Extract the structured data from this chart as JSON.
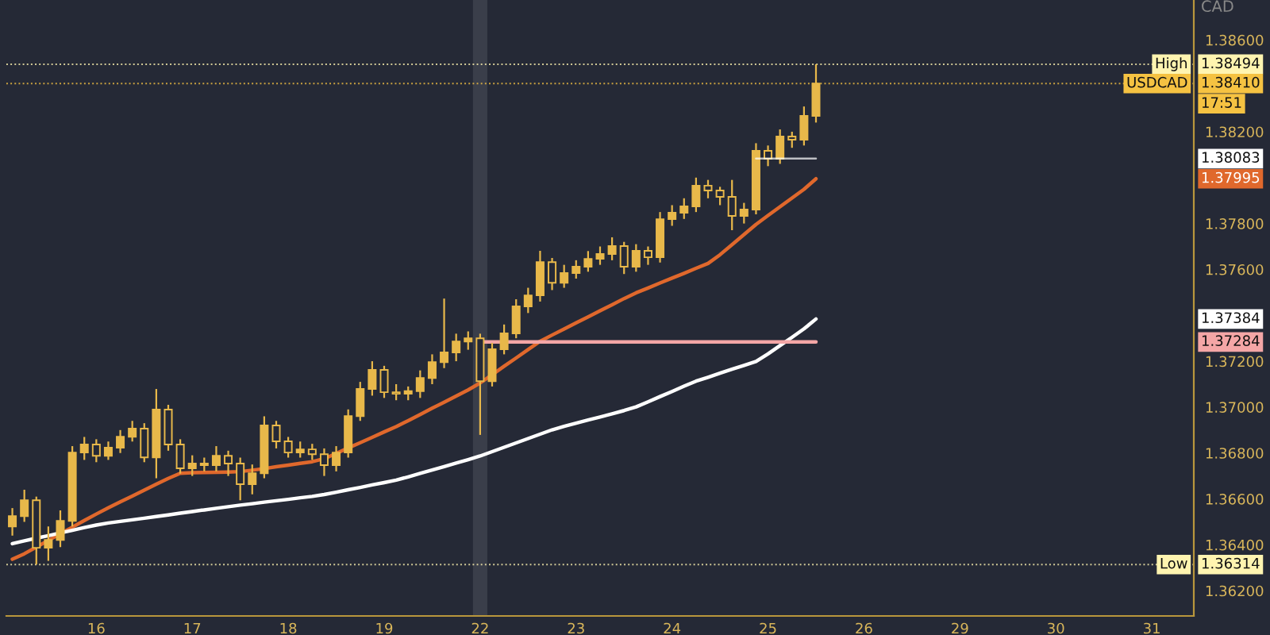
{
  "chart_data": {
    "type": "candlestick",
    "ylabel": "CAD",
    "categories": [
      null,
      null,
      null,
      null,
      null,
      null,
      null,
      "16",
      null,
      null,
      null,
      null,
      null,
      null,
      null,
      "17",
      null,
      null,
      null,
      null,
      null,
      null,
      null,
      "18",
      null,
      null,
      null,
      null,
      null,
      null,
      null,
      "19",
      null,
      null,
      null,
      null,
      null,
      null,
      null,
      "22",
      null,
      null,
      null,
      null,
      null,
      null,
      null,
      "23",
      null,
      null,
      null,
      null,
      null,
      null,
      null,
      "24",
      null,
      null,
      null,
      null,
      null,
      null,
      null,
      "25",
      null,
      null,
      null,
      null,
      null,
      null,
      null,
      "26",
      null,
      null,
      null,
      null,
      null,
      null,
      null,
      "29",
      null,
      null,
      null,
      null,
      null,
      null,
      null,
      "30",
      null,
      null,
      null,
      null,
      null,
      null,
      null,
      "31",
      null,
      null,
      null
    ],
    "ohlc": [
      [
        1.3648,
        1.3656,
        1.3644,
        1.36525
      ],
      [
        1.36525,
        1.3664,
        1.365,
        1.36594
      ],
      [
        1.36594,
        1.3661,
        1.36314,
        1.36387
      ],
      [
        1.36387,
        1.3648,
        1.3633,
        1.36421
      ],
      [
        1.36421,
        1.3655,
        1.3639,
        1.36504
      ],
      [
        1.36504,
        1.3683,
        1.3648,
        1.36802
      ],
      [
        1.36802,
        1.3687,
        1.3677,
        1.36837
      ],
      [
        1.36837,
        1.3686,
        1.3676,
        1.36788
      ],
      [
        1.36788,
        1.3685,
        1.3677,
        1.36823
      ],
      [
        1.36823,
        1.369,
        1.368,
        1.36871
      ],
      [
        1.36871,
        1.3694,
        1.3685,
        1.36906
      ],
      [
        1.36906,
        1.3693,
        1.3676,
        1.36781
      ],
      [
        1.36781,
        1.37079,
        1.3669,
        1.36989
      ],
      [
        1.36989,
        1.3701,
        1.3681,
        1.36837
      ],
      [
        1.36837,
        1.3686,
        1.3671,
        1.36733
      ],
      [
        1.36733,
        1.3679,
        1.367,
        1.36754
      ],
      [
        1.36754,
        1.3678,
        1.3672,
        1.36747
      ],
      [
        1.36747,
        1.3683,
        1.3672,
        1.36788
      ],
      [
        1.36788,
        1.3681,
        1.367,
        1.36754
      ],
      [
        1.36754,
        1.3678,
        1.36594,
        1.36664
      ],
      [
        1.36664,
        1.3675,
        1.3662,
        1.36712
      ],
      [
        1.36712,
        1.3696,
        1.3669,
        1.3692
      ],
      [
        1.3692,
        1.3694,
        1.3682,
        1.36851
      ],
      [
        1.36851,
        1.3687,
        1.3678,
        1.36802
      ],
      [
        1.36802,
        1.3685,
        1.3678,
        1.36816
      ],
      [
        1.36816,
        1.3684,
        1.3677,
        1.36795
      ],
      [
        1.36795,
        1.3682,
        1.367,
        1.36747
      ],
      [
        1.36747,
        1.3683,
        1.3672,
        1.36802
      ],
      [
        1.36802,
        1.3699,
        1.3678,
        1.36961
      ],
      [
        1.36961,
        1.3711,
        1.3694,
        1.37079
      ],
      [
        1.37079,
        1.372,
        1.3705,
        1.37162
      ],
      [
        1.37162,
        1.3718,
        1.3704,
        1.37065
      ],
      [
        1.37065,
        1.371,
        1.3703,
        1.37058
      ],
      [
        1.37058,
        1.3709,
        1.3703,
        1.3707
      ],
      [
        1.3707,
        1.3716,
        1.3704,
        1.37127
      ],
      [
        1.37127,
        1.3723,
        1.371,
        1.37196
      ],
      [
        1.37196,
        1.37473,
        1.3717,
        1.37238
      ],
      [
        1.37238,
        1.3732,
        1.372,
        1.37286
      ],
      [
        1.37286,
        1.3733,
        1.3725,
        1.373
      ],
      [
        1.373,
        1.3732,
        1.36879,
        1.37113
      ],
      [
        1.37113,
        1.3728,
        1.3709,
        1.37252
      ],
      [
        1.37252,
        1.3736,
        1.3723,
        1.37321
      ],
      [
        1.37321,
        1.3747,
        1.373,
        1.37439
      ],
      [
        1.37439,
        1.3752,
        1.3741,
        1.37487
      ],
      [
        1.37487,
        1.37681,
        1.3746,
        1.37632
      ],
      [
        1.37632,
        1.3765,
        1.3751,
        1.37542
      ],
      [
        1.37542,
        1.3762,
        1.3752,
        1.37584
      ],
      [
        1.37584,
        1.3764,
        1.3756,
        1.37612
      ],
      [
        1.37612,
        1.3768,
        1.3759,
        1.37646
      ],
      [
        1.37646,
        1.377,
        1.3762,
        1.37667
      ],
      [
        1.37667,
        1.3774,
        1.3764,
        1.37702
      ],
      [
        1.37702,
        1.3772,
        1.3758,
        1.37612
      ],
      [
        1.37612,
        1.3771,
        1.3759,
        1.37681
      ],
      [
        1.37681,
        1.377,
        1.3762,
        1.37653
      ],
      [
        1.37653,
        1.3785,
        1.3763,
        1.37819
      ],
      [
        1.37819,
        1.3788,
        1.3779,
        1.37847
      ],
      [
        1.37847,
        1.3791,
        1.3782,
        1.37875
      ],
      [
        1.37875,
        1.38,
        1.3785,
        1.37965
      ],
      [
        1.37965,
        1.3799,
        1.3791,
        1.37944
      ],
      [
        1.37944,
        1.3796,
        1.3788,
        1.37916
      ],
      [
        1.37916,
        1.3799,
        1.37771,
        1.37833
      ],
      [
        1.37833,
        1.3789,
        1.378,
        1.37861
      ],
      [
        1.37861,
        1.3815,
        1.3784,
        1.38117
      ],
      [
        1.38117,
        1.3814,
        1.3805,
        1.38082
      ],
      [
        1.38082,
        1.3821,
        1.3806,
        1.38179
      ],
      [
        1.38179,
        1.382,
        1.3813,
        1.38165
      ],
      [
        1.38165,
        1.3831,
        1.3814,
        1.38269
      ],
      [
        1.38269,
        1.38494,
        1.3824,
        1.3841
      ],
      null,
      null,
      null,
      null,
      null,
      null,
      null,
      null,
      null,
      null,
      null,
      null,
      null,
      null,
      null,
      null,
      null,
      null,
      null,
      null,
      null,
      null,
      null,
      null,
      null,
      null,
      null,
      null,
      null,
      null,
      null
    ],
    "color": "#e8b84a",
    "series": [
      {
        "type": "line",
        "color": "#e0682c",
        "values": [
          1.36337,
          1.36361,
          1.3639,
          1.36419,
          1.36448,
          1.36477,
          1.36506,
          1.36534,
          1.36561,
          1.36587,
          1.36612,
          1.36638,
          1.36664,
          1.36689,
          1.36712,
          1.36714,
          1.36715,
          1.36716,
          1.36717,
          1.36719,
          1.36725,
          1.36732,
          1.3674,
          1.36747,
          1.36755,
          1.36762,
          1.36775,
          1.36798,
          1.36822,
          1.36845,
          1.36868,
          1.36892,
          1.36915,
          1.36941,
          1.36968,
          1.36995,
          1.37021,
          1.37048,
          1.37075,
          1.37105,
          1.37141,
          1.37178,
          1.37214,
          1.37251,
          1.37287,
          1.37314,
          1.3734,
          1.37367,
          1.37393,
          1.3742,
          1.37446,
          1.37473,
          1.37498,
          1.37519,
          1.37541,
          1.37562,
          1.37583,
          1.37605,
          1.37626,
          1.37664,
          1.37708,
          1.37752,
          1.37796,
          1.37835,
          1.37873,
          1.37911,
          1.37949,
          1.37995,
          null,
          null,
          null,
          null,
          null,
          null,
          null,
          null,
          null,
          null,
          null,
          null,
          null,
          null,
          null,
          null,
          null,
          null,
          null,
          null,
          null,
          null,
          null,
          null,
          null,
          null,
          null,
          null,
          null,
          null,
          null
        ]
      },
      {
        "type": "line",
        "color": "#ffffff",
        "values": [
          1.36405,
          1.36417,
          1.36429,
          1.3644,
          1.36452,
          1.36463,
          1.36475,
          1.36486,
          1.36495,
          1.36502,
          1.36509,
          1.36516,
          1.36523,
          1.3653,
          1.36538,
          1.36545,
          1.36552,
          1.36559,
          1.36566,
          1.36573,
          1.36579,
          1.36586,
          1.36592,
          1.36598,
          1.36605,
          1.36611,
          1.36619,
          1.36629,
          1.3664,
          1.3665,
          1.36661,
          1.36671,
          1.36682,
          1.36696,
          1.36711,
          1.36726,
          1.36741,
          1.36756,
          1.36771,
          1.36787,
          1.36806,
          1.36825,
          1.36844,
          1.36863,
          1.36882,
          1.36901,
          1.36916,
          1.3693,
          1.36944,
          1.36957,
          1.36971,
          1.36985,
          1.37001,
          1.37023,
          1.37046,
          1.37068,
          1.37091,
          1.37113,
          1.3713,
          1.37148,
          1.37165,
          1.37182,
          1.37199,
          1.37232,
          1.37268,
          1.37304,
          1.37341,
          1.37384,
          null,
          null,
          null,
          null,
          null,
          null,
          null,
          null,
          null,
          null,
          null,
          null,
          null,
          null,
          null,
          null,
          null,
          null,
          null,
          null,
          null,
          null,
          null,
          null,
          null,
          null,
          null,
          null,
          null,
          null,
          null
        ]
      },
      {
        "type": "line",
        "color": "#f4a6a6",
        "values": [
          null,
          null,
          null,
          null,
          null,
          null,
          null,
          null,
          null,
          null,
          null,
          null,
          null,
          null,
          null,
          null,
          null,
          null,
          null,
          null,
          null,
          null,
          null,
          null,
          null,
          null,
          null,
          null,
          null,
          null,
          null,
          null,
          null,
          null,
          null,
          null,
          null,
          null,
          null,
          1.37284,
          1.37284,
          1.37284,
          1.37284,
          1.37284,
          1.37284,
          1.37284,
          1.37284,
          1.37284,
          1.37284,
          1.37284,
          1.37284,
          1.37284,
          1.37284,
          1.37284,
          1.37284,
          1.37284,
          1.37284,
          1.37284,
          1.37284,
          1.37284,
          1.37284,
          1.37284,
          1.37284,
          1.37284,
          1.37284,
          1.37284,
          1.37284,
          1.37284,
          null,
          null,
          null,
          null,
          null,
          null,
          null,
          null,
          null,
          null,
          null,
          null,
          null,
          null,
          null,
          null,
          null,
          null,
          null,
          null,
          null,
          null,
          null,
          null,
          null,
          null,
          null,
          null,
          null,
          null,
          null
        ]
      },
      {
        "type": "line",
        "color": "#ffffff",
        "values": [
          null,
          null,
          null,
          null,
          null,
          null,
          null,
          null,
          null,
          null,
          null,
          null,
          null,
          null,
          null,
          null,
          null,
          null,
          null,
          null,
          null,
          null,
          null,
          null,
          null,
          null,
          null,
          null,
          null,
          null,
          null,
          null,
          null,
          null,
          null,
          null,
          null,
          null,
          null,
          null,
          null,
          null,
          null,
          null,
          null,
          null,
          null,
          null,
          null,
          null,
          null,
          null,
          null,
          null,
          null,
          null,
          null,
          null,
          null,
          null,
          null,
          null,
          1.38083,
          1.38083,
          1.38083,
          1.38083,
          1.38083,
          1.38083,
          null,
          null,
          null,
          null,
          null,
          null,
          null,
          null,
          null,
          null,
          null,
          null,
          null,
          null,
          null,
          null,
          null,
          null,
          null,
          null,
          null,
          null,
          null,
          null,
          null,
          null,
          null,
          null,
          null,
          null,
          null
        ]
      }
    ],
    "ref_lines": [
      {
        "axis": "y",
        "value": 1.38494,
        "label": "High",
        "color": "#fff4b0",
        "line_style": "dotted"
      },
      {
        "axis": "y",
        "value": 1.3841,
        "label": "USDCAD",
        "color": "#f5c242",
        "line_style": "dotted"
      },
      {
        "axis": "y",
        "value": 1.36314,
        "label": "Low",
        "color": "#fff4b0",
        "line_style": "dotted"
      }
    ],
    "bands": [
      {
        "axis": "x",
        "from": "22",
        "to": "22",
        "color": "#3a3e4a"
      }
    ],
    "annotations": [
      {
        "text": "1.38494",
        "y": 1.38494
      },
      {
        "text": "1.38410",
        "y": 1.3841
      },
      {
        "text": "1.38083",
        "y": 1.38083
      },
      {
        "text": "1.37995",
        "y": 1.37995
      },
      {
        "text": "1.37384",
        "y": 1.37384
      },
      {
        "text": "1.37284",
        "y": 1.37284
      },
      {
        "text": "1.36314",
        "y": 1.36314
      },
      "17:51"
    ],
    "ylim": [
      1.3609,
      1.38774
    ],
    "yticks": [
      {
        "value": 1.362,
        "label": "1.36200"
      },
      {
        "value": 1.364,
        "label": "1.36400"
      },
      {
        "value": 1.366,
        "label": "1.36600"
      },
      {
        "value": 1.368,
        "label": "1.36800"
      },
      {
        "value": 1.37,
        "label": "1.37000"
      },
      {
        "value": 1.372,
        "label": "1.37200"
      },
      {
        "value": 1.376,
        "label": "1.37600"
      },
      {
        "value": 1.378,
        "label": "1.37800"
      },
      {
        "value": 1.382,
        "label": "1.38200"
      },
      {
        "value": 1.386,
        "label": "1.38600"
      }
    ],
    "grid": false,
    "legend": false
  }
}
